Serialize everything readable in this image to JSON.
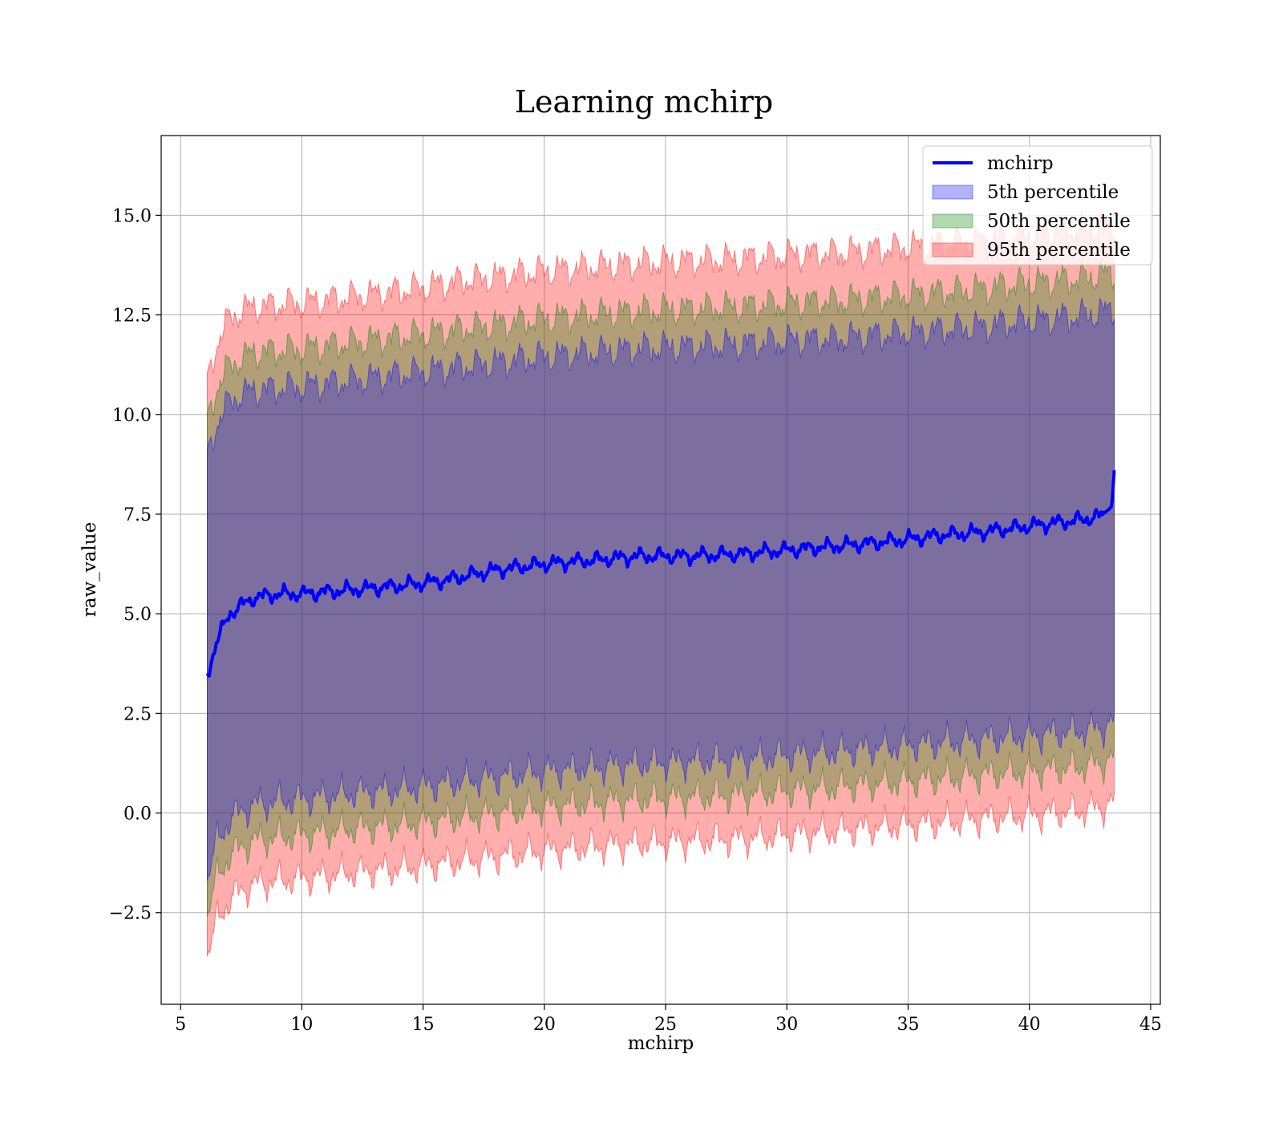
{
  "chart_data": {
    "type": "area",
    "title": "Learning mchirp",
    "xlabel": "mchirp",
    "ylabel": "raw_value",
    "xlim": [
      4.2,
      45.4
    ],
    "ylim": [
      -4.8,
      17.0
    ],
    "xticks": [
      5,
      10,
      15,
      20,
      25,
      30,
      35,
      40,
      45
    ],
    "xtick_labels": [
      "5",
      "10",
      "15",
      "20",
      "25",
      "30",
      "35",
      "40",
      "45"
    ],
    "yticks": [
      -2.5,
      0.0,
      2.5,
      5.0,
      7.5,
      10.0,
      12.5,
      15.0
    ],
    "ytick_labels": [
      "−2.5",
      "0.0",
      "2.5",
      "5.0",
      "7.5",
      "10.0",
      "12.5",
      "15.0"
    ],
    "grid": true,
    "legend_position": "top-right",
    "line_series": {
      "name": "mchirp",
      "color": "#0000ff",
      "x": [
        6.1,
        6.5,
        7.0,
        7.5,
        8.0,
        9.0,
        10,
        12,
        14,
        16,
        18,
        20,
        22,
        24,
        26,
        28,
        30,
        32,
        34,
        36,
        38,
        40,
        42,
        43.0,
        43.4,
        43.5
      ],
      "y": [
        3.5,
        4.3,
        5.0,
        5.2,
        5.4,
        5.5,
        5.5,
        5.6,
        5.7,
        5.85,
        6.1,
        6.25,
        6.35,
        6.45,
        6.45,
        6.5,
        6.6,
        6.7,
        6.8,
        6.95,
        7.05,
        7.2,
        7.35,
        7.45,
        7.7,
        8.6
      ]
    },
    "bands": [
      {
        "name": "95th percentile",
        "color": "#ff0000",
        "opacity": 0.32,
        "x": [
          6.1,
          6.5,
          7.0,
          7.5,
          8.0,
          9.0,
          10,
          12,
          14,
          16,
          18,
          20,
          22,
          24,
          26,
          28,
          30,
          32,
          34,
          36,
          38,
          40,
          42,
          43.0,
          43.5
        ],
        "upper": [
          10.8,
          11.8,
          12.4,
          12.6,
          12.7,
          12.75,
          12.8,
          12.95,
          13.1,
          13.3,
          13.45,
          13.6,
          13.7,
          13.8,
          13.85,
          13.9,
          14.0,
          14.05,
          14.15,
          14.25,
          14.35,
          14.5,
          14.6,
          14.7,
          14.8
        ],
        "lower": [
          -3.6,
          -2.7,
          -2.2,
          -1.95,
          -1.8,
          -1.7,
          -1.65,
          -1.5,
          -1.4,
          -1.25,
          -1.1,
          -0.95,
          -0.85,
          -0.75,
          -0.7,
          -0.65,
          -0.55,
          -0.45,
          -0.35,
          -0.25,
          -0.15,
          -0.05,
          0.05,
          0.15,
          0.3
        ]
      },
      {
        "name": "50th percentile",
        "color": "#008000",
        "opacity": 0.3,
        "x": [
          6.1,
          6.5,
          7.0,
          7.5,
          8.0,
          9.0,
          10,
          12,
          14,
          16,
          18,
          20,
          22,
          24,
          26,
          28,
          30,
          32,
          34,
          36,
          38,
          40,
          42,
          43.0,
          43.5
        ],
        "upper": [
          9.8,
          10.7,
          11.2,
          11.4,
          11.55,
          11.6,
          11.65,
          11.8,
          11.95,
          12.1,
          12.25,
          12.4,
          12.5,
          12.6,
          12.65,
          12.7,
          12.8,
          12.85,
          12.95,
          13.05,
          13.15,
          13.3,
          13.4,
          13.5,
          13.6
        ],
        "lower": [
          -2.6,
          -1.6,
          -1.1,
          -0.85,
          -0.7,
          -0.6,
          -0.55,
          -0.4,
          -0.3,
          -0.15,
          0.0,
          0.15,
          0.25,
          0.35,
          0.4,
          0.45,
          0.55,
          0.65,
          0.75,
          0.85,
          0.95,
          1.05,
          1.15,
          1.25,
          1.4
        ]
      },
      {
        "name": "5th percentile",
        "color": "#0000ff",
        "opacity": 0.3,
        "x": [
          6.1,
          6.5,
          7.0,
          7.5,
          8.0,
          9.0,
          10,
          12,
          14,
          16,
          18,
          20,
          22,
          24,
          26,
          28,
          30,
          32,
          34,
          36,
          38,
          40,
          42,
          43.0,
          43.5
        ],
        "upper": [
          8.9,
          9.8,
          10.3,
          10.5,
          10.6,
          10.65,
          10.7,
          10.85,
          11.0,
          11.15,
          11.3,
          11.45,
          11.55,
          11.65,
          11.7,
          11.75,
          11.85,
          11.9,
          12.0,
          12.1,
          12.2,
          12.35,
          12.45,
          12.55,
          12.7
        ],
        "lower": [
          -1.7,
          -0.7,
          -0.2,
          0.05,
          0.2,
          0.3,
          0.35,
          0.5,
          0.6,
          0.75,
          0.9,
          1.05,
          1.15,
          1.25,
          1.3,
          1.35,
          1.45,
          1.55,
          1.65,
          1.75,
          1.85,
          1.95,
          2.05,
          2.15,
          2.3
        ]
      }
    ],
    "legend": [
      {
        "label": "mchirp",
        "kind": "line",
        "color": "#0000ff"
      },
      {
        "label": "5th percentile",
        "kind": "patch",
        "color": "#0000ff"
      },
      {
        "label": "50th percentile",
        "kind": "patch",
        "color": "#008000"
      },
      {
        "label": "95th percentile",
        "kind": "patch",
        "color": "#ff0000"
      }
    ]
  }
}
